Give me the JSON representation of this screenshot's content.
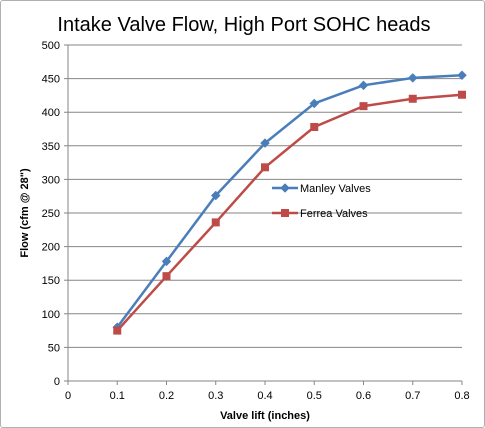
{
  "chart_data": {
    "type": "line",
    "title": "Intake Valve Flow, High Port SOHC heads",
    "xlabel": "Valve lift (inches)",
    "ylabel": "Flow (cfm @ 28\")",
    "xlim": [
      0,
      0.8
    ],
    "ylim": [
      0,
      500
    ],
    "xticks": [
      "0",
      "0.1",
      "0.2",
      "0.3",
      "0.4",
      "0.5",
      "0.6",
      "0.7",
      "0.8"
    ],
    "yticks": [
      "0",
      "50",
      "100",
      "150",
      "200",
      "250",
      "300",
      "350",
      "400",
      "450",
      "500"
    ],
    "grid": "horizontal",
    "legend_position": "right-middle",
    "x": [
      0.1,
      0.2,
      0.3,
      0.4,
      0.5,
      0.6,
      0.7,
      0.8
    ],
    "series": [
      {
        "name": "Manley Valves",
        "color": "#4a7ebb",
        "marker": "diamond",
        "values": [
          80,
          178,
          276,
          354,
          413,
          440,
          451,
          455
        ]
      },
      {
        "name": "Ferrea Valves",
        "color": "#be4b48",
        "marker": "square",
        "values": [
          75,
          156,
          236,
          318,
          378,
          409,
          420,
          426
        ]
      }
    ]
  }
}
